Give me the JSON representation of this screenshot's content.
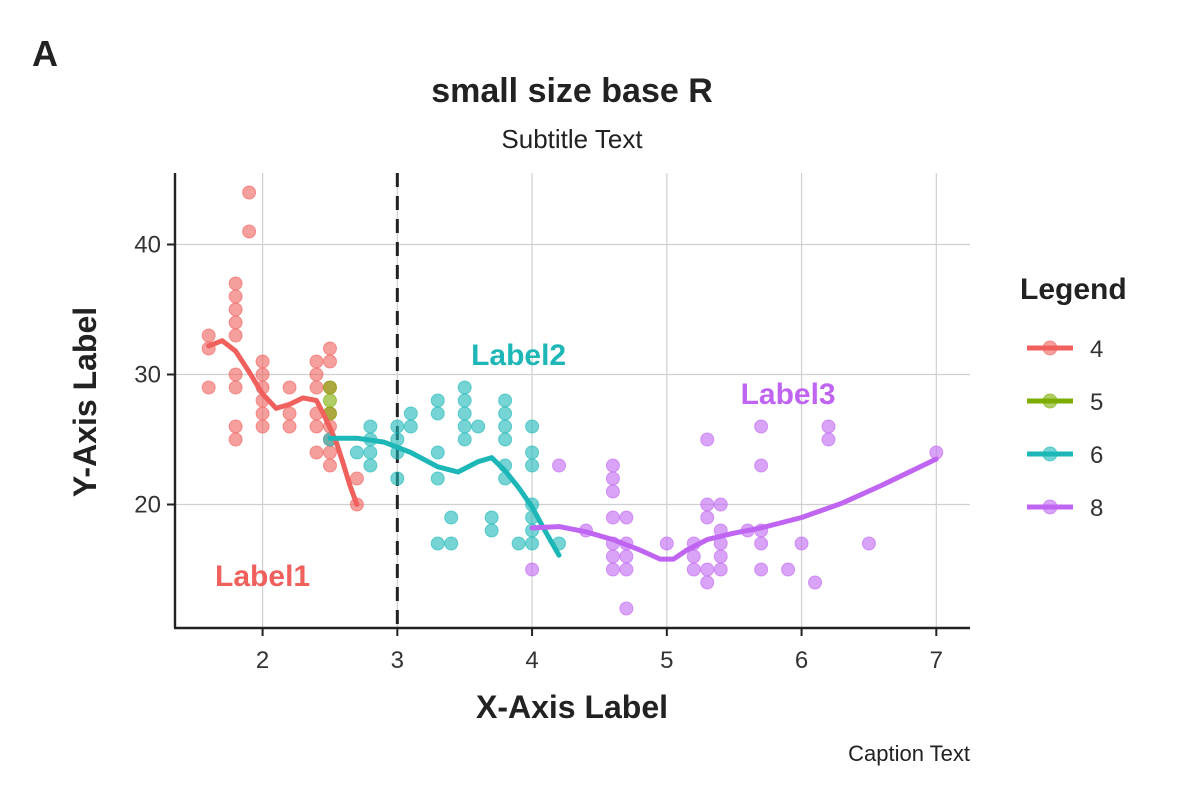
{
  "tag": "A",
  "chart_data": {
    "type": "scatter",
    "title": "small size base R",
    "subtitle": "Subtitle Text",
    "caption": "Caption Text",
    "xlabel": "X-Axis Label",
    "ylabel": "Y-Axis Label",
    "xlim": [
      1.35,
      7.25
    ],
    "ylim": [
      10.5,
      45.5
    ],
    "xticks": [
      2,
      3,
      4,
      5,
      6,
      7
    ],
    "yticks": [
      20,
      30,
      40
    ],
    "grid": true,
    "vline": 3,
    "legend": {
      "title": "Legend",
      "position": "right"
    },
    "series": [
      {
        "name": "4",
        "color": "#F0605D",
        "points": [
          [
            1.6,
            33
          ],
          [
            1.6,
            32
          ],
          [
            1.6,
            29
          ],
          [
            1.8,
            37
          ],
          [
            1.8,
            36
          ],
          [
            1.8,
            35
          ],
          [
            1.8,
            34
          ],
          [
            1.8,
            33
          ],
          [
            1.8,
            30
          ],
          [
            1.8,
            29
          ],
          [
            1.8,
            26
          ],
          [
            1.8,
            25
          ],
          [
            1.9,
            44
          ],
          [
            1.9,
            41
          ],
          [
            2.0,
            31
          ],
          [
            2.0,
            30
          ],
          [
            2.0,
            29
          ],
          [
            2.0,
            28
          ],
          [
            2.0,
            27
          ],
          [
            2.0,
            26
          ],
          [
            2.2,
            29
          ],
          [
            2.2,
            27
          ],
          [
            2.2,
            26
          ],
          [
            2.4,
            31
          ],
          [
            2.4,
            30
          ],
          [
            2.4,
            29
          ],
          [
            2.4,
            27
          ],
          [
            2.4,
            26
          ],
          [
            2.4,
            24
          ],
          [
            2.5,
            32
          ],
          [
            2.5,
            31
          ],
          [
            2.5,
            29
          ],
          [
            2.5,
            27
          ],
          [
            2.5,
            26
          ],
          [
            2.5,
            25
          ],
          [
            2.5,
            24
          ],
          [
            2.5,
            23
          ],
          [
            2.7,
            22
          ],
          [
            2.7,
            20
          ]
        ],
        "smooth": [
          [
            1.6,
            32.2
          ],
          [
            1.7,
            32.6
          ],
          [
            1.8,
            31.8
          ],
          [
            1.9,
            30.2
          ],
          [
            2.0,
            28.5
          ],
          [
            2.1,
            27.4
          ],
          [
            2.2,
            27.7
          ],
          [
            2.3,
            28.2
          ],
          [
            2.4,
            28.0
          ],
          [
            2.45,
            27.0
          ],
          [
            2.5,
            25.9
          ],
          [
            2.55,
            24.7
          ],
          [
            2.6,
            23.1
          ],
          [
            2.65,
            21.4
          ],
          [
            2.7,
            20.0
          ]
        ]
      },
      {
        "name": "5",
        "color": "#7CAE00",
        "points": [
          [
            2.5,
            29
          ],
          [
            2.5,
            28
          ],
          [
            2.5,
            27
          ]
        ]
      },
      {
        "name": "6",
        "color": "#1DB7B7",
        "points": [
          [
            2.5,
            25
          ],
          [
            2.7,
            24
          ],
          [
            2.8,
            26
          ],
          [
            2.8,
            25
          ],
          [
            2.8,
            24
          ],
          [
            2.8,
            23
          ],
          [
            3.0,
            26
          ],
          [
            3.0,
            25
          ],
          [
            3.0,
            24
          ],
          [
            3.0,
            22
          ],
          [
            3.1,
            27
          ],
          [
            3.1,
            26
          ],
          [
            3.3,
            28
          ],
          [
            3.3,
            27
          ],
          [
            3.3,
            24
          ],
          [
            3.3,
            22
          ],
          [
            3.3,
            17
          ],
          [
            3.4,
            19
          ],
          [
            3.4,
            17
          ],
          [
            3.5,
            29
          ],
          [
            3.5,
            28
          ],
          [
            3.5,
            27
          ],
          [
            3.5,
            26
          ],
          [
            3.5,
            25
          ],
          [
            3.6,
            26
          ],
          [
            3.7,
            19
          ],
          [
            3.7,
            18
          ],
          [
            3.8,
            28
          ],
          [
            3.8,
            27
          ],
          [
            3.8,
            26
          ],
          [
            3.8,
            25
          ],
          [
            3.8,
            23
          ],
          [
            3.8,
            22
          ],
          [
            3.9,
            17
          ],
          [
            4.0,
            26
          ],
          [
            4.0,
            24
          ],
          [
            4.0,
            23
          ],
          [
            4.0,
            20
          ],
          [
            4.0,
            19
          ],
          [
            4.0,
            18
          ],
          [
            4.0,
            17
          ],
          [
            4.2,
            17
          ]
        ],
        "smooth": [
          [
            2.5,
            25.1
          ],
          [
            2.7,
            25.1
          ],
          [
            2.9,
            24.8
          ],
          [
            3.1,
            24.0
          ],
          [
            3.3,
            22.9
          ],
          [
            3.45,
            22.5
          ],
          [
            3.6,
            23.3
          ],
          [
            3.7,
            23.6
          ],
          [
            3.8,
            22.6
          ],
          [
            3.9,
            21.3
          ],
          [
            4.0,
            19.8
          ],
          [
            4.1,
            17.9
          ],
          [
            4.2,
            16.1
          ]
        ]
      },
      {
        "name": "8",
        "color": "#C065F2",
        "points": [
          [
            4.0,
            15
          ],
          [
            4.2,
            23
          ],
          [
            4.4,
            18
          ],
          [
            4.6,
            23
          ],
          [
            4.6,
            22
          ],
          [
            4.6,
            21
          ],
          [
            4.6,
            19
          ],
          [
            4.6,
            17
          ],
          [
            4.6,
            16
          ],
          [
            4.6,
            15
          ],
          [
            4.7,
            19
          ],
          [
            4.7,
            17
          ],
          [
            4.7,
            16
          ],
          [
            4.7,
            15
          ],
          [
            4.7,
            12
          ],
          [
            5.0,
            17
          ],
          [
            5.2,
            17
          ],
          [
            5.2,
            16
          ],
          [
            5.2,
            15
          ],
          [
            5.3,
            25
          ],
          [
            5.3,
            20
          ],
          [
            5.3,
            19
          ],
          [
            5.3,
            15
          ],
          [
            5.3,
            14
          ],
          [
            5.4,
            20
          ],
          [
            5.4,
            18
          ],
          [
            5.4,
            17
          ],
          [
            5.4,
            16
          ],
          [
            5.4,
            15
          ],
          [
            5.6,
            18
          ],
          [
            5.7,
            26
          ],
          [
            5.7,
            23
          ],
          [
            5.7,
            18
          ],
          [
            5.7,
            17
          ],
          [
            5.7,
            15
          ],
          [
            5.9,
            15
          ],
          [
            6.0,
            17
          ],
          [
            6.1,
            14
          ],
          [
            6.2,
            26
          ],
          [
            6.2,
            25
          ],
          [
            6.5,
            17
          ],
          [
            7.0,
            24
          ]
        ],
        "smooth": [
          [
            4.0,
            18.2
          ],
          [
            4.2,
            18.3
          ],
          [
            4.4,
            17.9
          ],
          [
            4.6,
            17.3
          ],
          [
            4.8,
            16.5
          ],
          [
            4.95,
            15.8
          ],
          [
            5.05,
            15.8
          ],
          [
            5.15,
            16.5
          ],
          [
            5.3,
            17.3
          ],
          [
            5.5,
            17.8
          ],
          [
            5.7,
            18.2
          ],
          [
            6.0,
            19.0
          ],
          [
            6.3,
            20.1
          ],
          [
            6.6,
            21.5
          ],
          [
            7.0,
            23.5
          ]
        ]
      }
    ],
    "annotations": [
      {
        "text": "Label1",
        "x": 2.0,
        "y": 14.5,
        "color": "#F0605D"
      },
      {
        "text": "Label2",
        "x": 3.9,
        "y": 31.5,
        "color": "#1DB7B7"
      },
      {
        "text": "Label3",
        "x": 5.9,
        "y": 28.5,
        "color": "#C065F2"
      }
    ]
  }
}
